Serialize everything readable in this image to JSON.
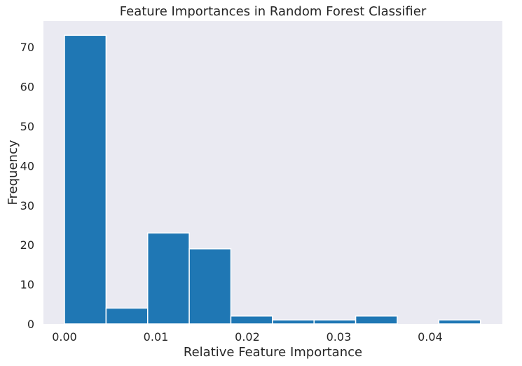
{
  "chart_data": {
    "type": "bar",
    "subtype": "histogram",
    "title": "Feature Importances in Random Forest Classifier",
    "xlabel": "Relative Feature Importance",
    "ylabel": "Frequency",
    "xlim": [
      -0.0023,
      0.0479
    ],
    "ylim": [
      0,
      76.6
    ],
    "x_ticks": [
      0.0,
      0.01,
      0.02,
      0.03,
      0.04
    ],
    "x_tick_labels": [
      "0.00",
      "0.01",
      "0.02",
      "0.03",
      "0.04"
    ],
    "y_ticks": [
      0,
      10,
      20,
      30,
      40,
      50,
      60,
      70
    ],
    "y_tick_labels": [
      "0",
      "10",
      "20",
      "30",
      "40",
      "50",
      "60",
      "70"
    ],
    "bin_edges": [
      0.0,
      0.00455,
      0.0091,
      0.01365,
      0.0182,
      0.02275,
      0.0273,
      0.03185,
      0.0364,
      0.04095,
      0.0455
    ],
    "values": [
      73,
      4,
      23,
      19,
      2,
      1,
      1,
      2,
      0,
      1
    ],
    "bar_color": "#1f77b4",
    "bar_edge_color": "#ffffff",
    "background_color": "#eaeaf2",
    "grid": false,
    "legend": "none"
  }
}
